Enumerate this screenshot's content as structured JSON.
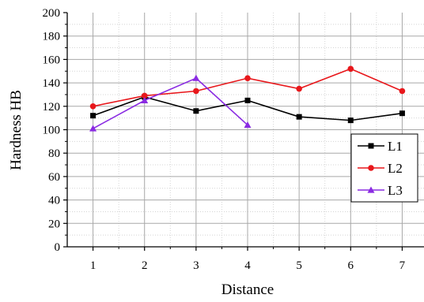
{
  "chart_data": {
    "type": "line",
    "title": "",
    "xlabel": "Distance",
    "ylabel": "Hardness HB",
    "x": [
      1,
      2,
      3,
      4,
      5,
      6,
      7
    ],
    "xlim": [
      0.5,
      7.5
    ],
    "ylim": [
      0,
      200
    ],
    "x_ticks": [
      "1",
      "2",
      "3",
      "4",
      "5",
      "6",
      "7"
    ],
    "y_ticks": [
      "0",
      "20",
      "40",
      "60",
      "80",
      "100",
      "120",
      "140",
      "160",
      "180",
      "200"
    ],
    "grid": true,
    "legend_position": "right-middle",
    "series": [
      {
        "name": "L1",
        "color": "#000000",
        "marker": "square",
        "x": [
          1,
          2,
          3,
          4,
          5,
          6,
          7
        ],
        "values": [
          112,
          128,
          116,
          125,
          111,
          108,
          114
        ]
      },
      {
        "name": "L2",
        "color": "#e8171b",
        "marker": "circle",
        "x": [
          1,
          2,
          3,
          4,
          5,
          6,
          7
        ],
        "values": [
          120,
          129,
          133,
          144,
          135,
          152,
          133
        ]
      },
      {
        "name": "L3",
        "color": "#8a2be2",
        "marker": "triangle",
        "x": [
          1,
          2,
          3,
          4
        ],
        "values": [
          101,
          125,
          144,
          104
        ]
      }
    ]
  }
}
